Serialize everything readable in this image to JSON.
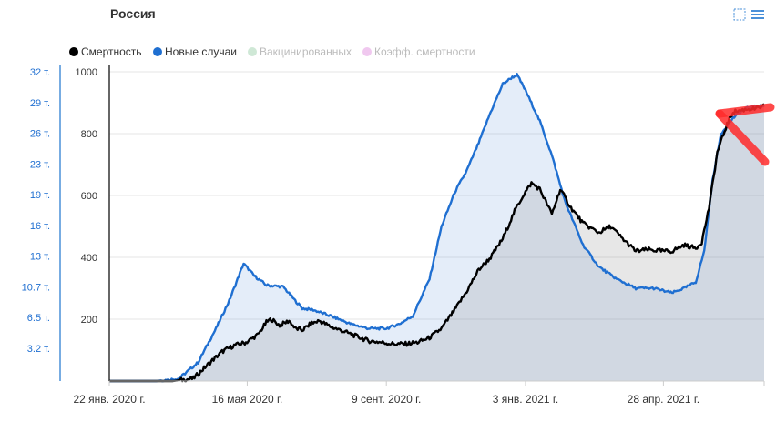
{
  "chart_data": {
    "type": "area",
    "title": "Россия",
    "legend_position": "top-left",
    "grid": true,
    "legend": [
      {
        "name": "Смертность",
        "color": "#000000",
        "active": true
      },
      {
        "name": "Новые случаи",
        "color": "#1f6fd1",
        "active": true
      },
      {
        "name": "Вакцинированных",
        "color": "#cfe8d6",
        "active": false
      },
      {
        "name": "Коэфф. смертности",
        "color": "#f0c8ef",
        "active": false
      }
    ],
    "x_axis": {
      "type": "date",
      "range": [
        "2020-01-22",
        "2021-07-21"
      ],
      "tick_labels": [
        "22 янв. 2020 г.",
        "16 мая 2020 г.",
        "9 сент. 2020 г.",
        "3 янв. 2021 г.",
        "28 апр. 2021 г."
      ],
      "tick_dates": [
        "2020-01-22",
        "2020-05-16",
        "2020-09-09",
        "2021-01-03",
        "2021-04-28"
      ]
    },
    "y_axis_deaths": {
      "ylim": [
        0,
        1000
      ],
      "tick_labels": [
        "200",
        "400",
        "600",
        "800",
        "1000"
      ],
      "tick_values": [
        200,
        400,
        600,
        800,
        1000
      ]
    },
    "y_axis_cases": {
      "tick_labels": [
        "3.2 т.",
        "6.5 т.",
        "10.7 т.",
        "13 т.",
        "16 т.",
        "19 т.",
        "23 т.",
        "26 т.",
        "29 т.",
        "32 т."
      ]
    },
    "series": [
      {
        "name": "Смертность",
        "axis": "deaths",
        "color": "#000000",
        "x": [
          "2020-01-22",
          "2020-03-15",
          "2020-04-01",
          "2020-04-15",
          "2020-04-25",
          "2020-05-05",
          "2020-05-15",
          "2020-05-25",
          "2020-06-01",
          "2020-06-05",
          "2020-06-12",
          "2020-06-20",
          "2020-06-25",
          "2020-07-01",
          "2020-07-08",
          "2020-07-15",
          "2020-07-25",
          "2020-08-05",
          "2020-08-15",
          "2020-08-25",
          "2020-09-05",
          "2020-09-15",
          "2020-09-25",
          "2020-10-05",
          "2020-10-15",
          "2020-10-25",
          "2020-11-05",
          "2020-11-15",
          "2020-11-25",
          "2020-12-05",
          "2020-12-15",
          "2020-12-25",
          "2021-01-01",
          "2021-01-08",
          "2021-01-15",
          "2021-01-25",
          "2021-02-01",
          "2021-02-10",
          "2021-02-20",
          "2021-03-05",
          "2021-03-15",
          "2021-03-25",
          "2021-04-05",
          "2021-04-15",
          "2021-04-28",
          "2021-05-05",
          "2021-05-15",
          "2021-05-25",
          "2021-05-30",
          "2021-06-05",
          "2021-06-12",
          "2021-06-20",
          "2021-06-25",
          "2021-07-01",
          "2021-07-08",
          "2021-07-14",
          "2021-07-21"
        ],
        "values": [
          0,
          0,
          8,
          60,
          95,
          115,
          125,
          150,
          190,
          200,
          180,
          195,
          170,
          165,
          185,
          195,
          175,
          160,
          145,
          130,
          125,
          120,
          120,
          125,
          140,
          170,
          230,
          290,
          360,
          400,
          460,
          550,
          600,
          640,
          620,
          540,
          620,
          560,
          510,
          480,
          500,
          460,
          420,
          425,
          420,
          420,
          440,
          430,
          450,
          560,
          740,
          830,
          870,
          875,
          880,
          880,
          890
        ]
      },
      {
        "name": "Новые случаи",
        "axis": "cases",
        "color": "#1f6fd1",
        "x": [
          "2020-01-22",
          "2020-03-01",
          "2020-03-20",
          "2020-04-05",
          "2020-04-20",
          "2020-05-01",
          "2020-05-08",
          "2020-05-13",
          "2020-05-22",
          "2020-06-01",
          "2020-06-15",
          "2020-06-25",
          "2020-07-01",
          "2020-07-10",
          "2020-07-25",
          "2020-08-10",
          "2020-08-25",
          "2020-09-09",
          "2020-09-20",
          "2020-10-01",
          "2020-10-15",
          "2020-10-25",
          "2020-11-05",
          "2020-11-15",
          "2020-11-25",
          "2020-12-05",
          "2020-12-15",
          "2020-12-22",
          "2020-12-27",
          "2021-01-03",
          "2021-01-15",
          "2021-01-25",
          "2021-02-05",
          "2021-02-20",
          "2021-03-05",
          "2021-03-20",
          "2021-04-05",
          "2021-04-20",
          "2021-05-05",
          "2021-05-15",
          "2021-05-25",
          "2021-06-01",
          "2021-06-08",
          "2021-06-15",
          "2021-06-25",
          "2021-07-01",
          "2021-07-08",
          "2021-07-21"
        ],
        "values": [
          0,
          0,
          8,
          60,
          170,
          260,
          330,
          380,
          340,
          310,
          305,
          260,
          235,
          230,
          210,
          185,
          170,
          170,
          185,
          210,
          330,
          500,
          610,
          680,
          770,
          870,
          960,
          980,
          990,
          940,
          840,
          730,
          580,
          440,
          370,
          330,
          300,
          300,
          285,
          300,
          320,
          420,
          650,
          800,
          850,
          870,
          885,
          890
        ]
      }
    ]
  },
  "toolbar": {
    "select_icon": "dotted-square-icon",
    "menu_icon": "hamburger-menu-icon"
  }
}
